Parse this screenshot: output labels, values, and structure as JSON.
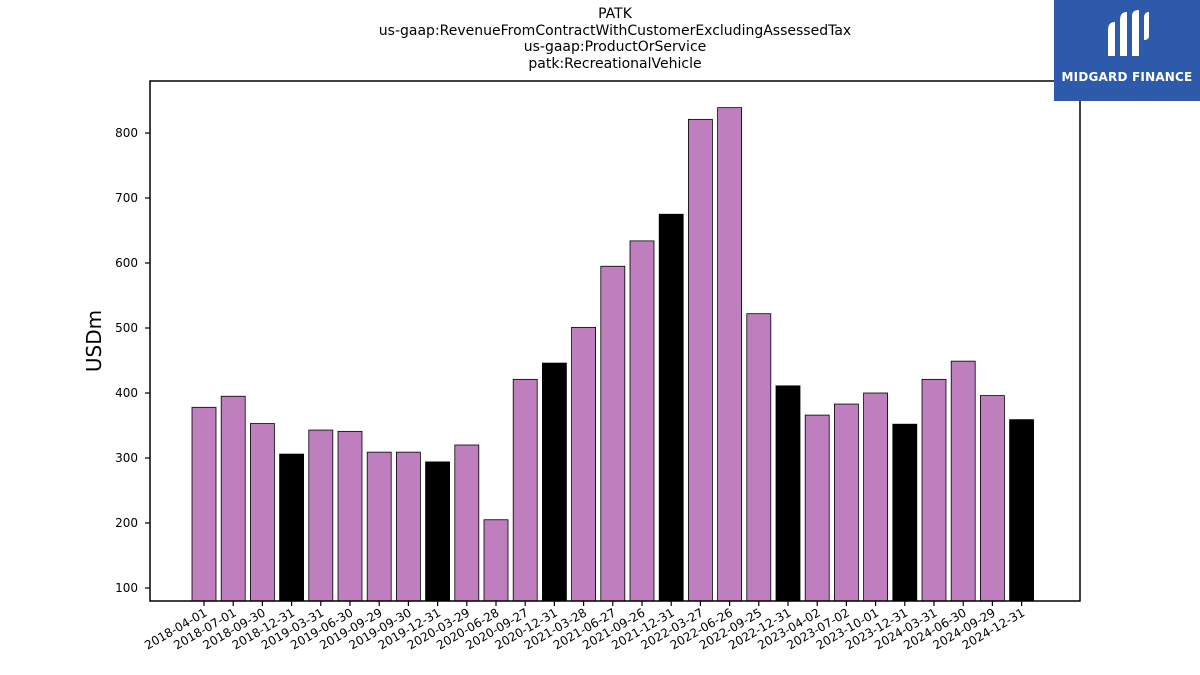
{
  "titles": {
    "line1": "PATK",
    "line2": "us-gaap:RevenueFromContractWithCustomerExcludingAssessedTax",
    "line3": "us-gaap:ProductOrService",
    "line4": "patk:RecreationalVehicle"
  },
  "logo": {
    "text": "MIDGARD FINANCE",
    "icon": "midgard-logo-mark",
    "background": "#2e5aac"
  },
  "chart_data": {
    "type": "bar",
    "title": "PATK\nus-gaap:RevenueFromContractWithCustomerExcludingAssessedTax\nus-gaap:ProductOrService\npatk:RecreationalVehicle",
    "xlabel": "",
    "ylabel": "USDm",
    "ylim": [
      80,
      880
    ],
    "yticks": [
      100,
      200,
      300,
      400,
      500,
      600,
      700,
      800
    ],
    "grid": false,
    "colors": {
      "quarter": "#bf7fbf",
      "year_end": "#000000"
    },
    "categories": [
      "2018-04-01",
      "2018-07-01",
      "2018-09-30",
      "2018-12-31",
      "2019-03-31",
      "2019-06-30",
      "2019-09-29",
      "2019-09-30",
      "2019-12-31",
      "2020-03-29",
      "2020-06-28",
      "2020-09-27",
      "2020-12-31",
      "2021-03-28",
      "2021-06-27",
      "2021-09-26",
      "2021-12-31",
      "2022-03-27",
      "2022-06-26",
      "2022-09-25",
      "2022-12-31",
      "2023-04-02",
      "2023-07-02",
      "2023-10-01",
      "2023-12-31",
      "2024-03-31",
      "2024-06-30",
      "2024-09-29",
      "2024-12-31"
    ],
    "values": [
      378,
      395,
      353,
      306,
      343,
      341,
      309,
      309,
      294,
      320,
      205,
      421,
      446,
      501,
      595,
      634,
      675,
      821,
      839,
      522,
      411,
      366,
      383,
      400,
      352,
      421,
      449,
      396,
      359
    ],
    "year_end": [
      false,
      false,
      false,
      true,
      false,
      false,
      false,
      false,
      true,
      false,
      false,
      false,
      true,
      false,
      false,
      false,
      true,
      false,
      false,
      false,
      true,
      false,
      false,
      false,
      true,
      false,
      false,
      false,
      true
    ]
  }
}
